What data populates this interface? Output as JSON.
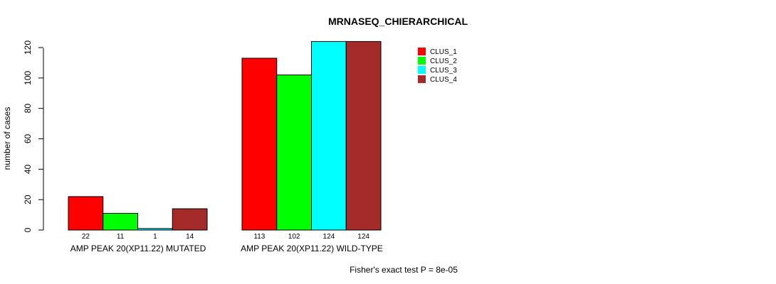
{
  "chart_data": {
    "type": "bar",
    "title": "MRNASEQ_CHIERARCHICAL",
    "ylabel": "number of cases",
    "xlabel": "",
    "ylim": [
      0,
      120
    ],
    "yticks": [
      "0",
      "20",
      "40",
      "60",
      "80",
      "100",
      "120"
    ],
    "categories": [
      "AMP PEAK 20(XP11.22) MUTATED",
      "AMP PEAK 20(XP11.22) WILD-TYPE"
    ],
    "series": [
      {
        "name": "CLUS_1",
        "color": "#ff0000",
        "values": [
          22,
          113
        ]
      },
      {
        "name": "CLUS_2",
        "color": "#00ff00",
        "values": [
          11,
          102
        ]
      },
      {
        "name": "CLUS_3",
        "color": "#00ffff",
        "values": [
          1,
          124
        ]
      },
      {
        "name": "CLUS_4",
        "color": "#a52a2a",
        "values": [
          14,
          124
        ]
      }
    ],
    "bar_labels": [
      [
        "22",
        "11",
        "1",
        "14"
      ],
      [
        "113",
        "102",
        "124",
        "124"
      ]
    ],
    "legend_position": "top-right",
    "footnote": "Fisher's exact test P = 8e-05"
  }
}
